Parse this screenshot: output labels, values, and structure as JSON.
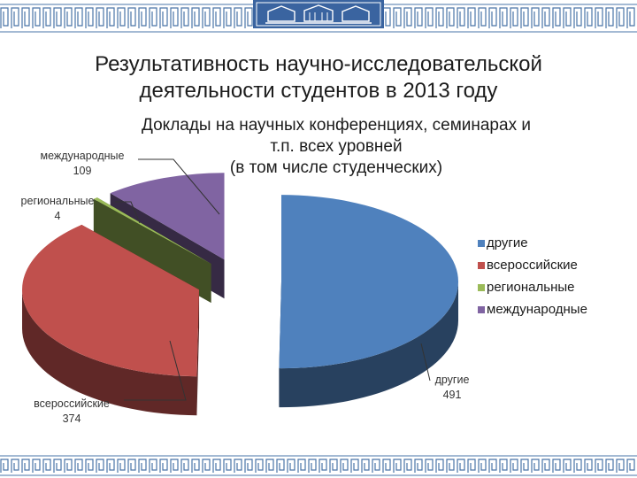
{
  "slide_title": [
    "Результативность научно-исследовательской",
    "деятельности студентов в  2013 году"
  ],
  "chart_data": {
    "type": "pie",
    "title": [
      "Доклады на научных конференциях, семинарах и",
      "т.п. всех уровней",
      "(в том числе студенческих)"
    ],
    "categories": [
      "другие",
      "всероссийские",
      "региональные",
      "международные"
    ],
    "values": [
      491,
      374,
      4,
      109
    ],
    "colors": [
      "#4f81bd",
      "#c0504d",
      "#9bbb59",
      "#8064a2"
    ],
    "data_labels": [
      {
        "name": "другие",
        "value": "491"
      },
      {
        "name": "всероссийские",
        "value": "374"
      },
      {
        "name": "региональные",
        "value": "4"
      },
      {
        "name": "международные",
        "value": "109"
      }
    ],
    "legend": [
      "другие",
      "всероссийские",
      "региональные",
      "международные"
    ],
    "legend_position": "right",
    "style": "3d-exploded"
  }
}
